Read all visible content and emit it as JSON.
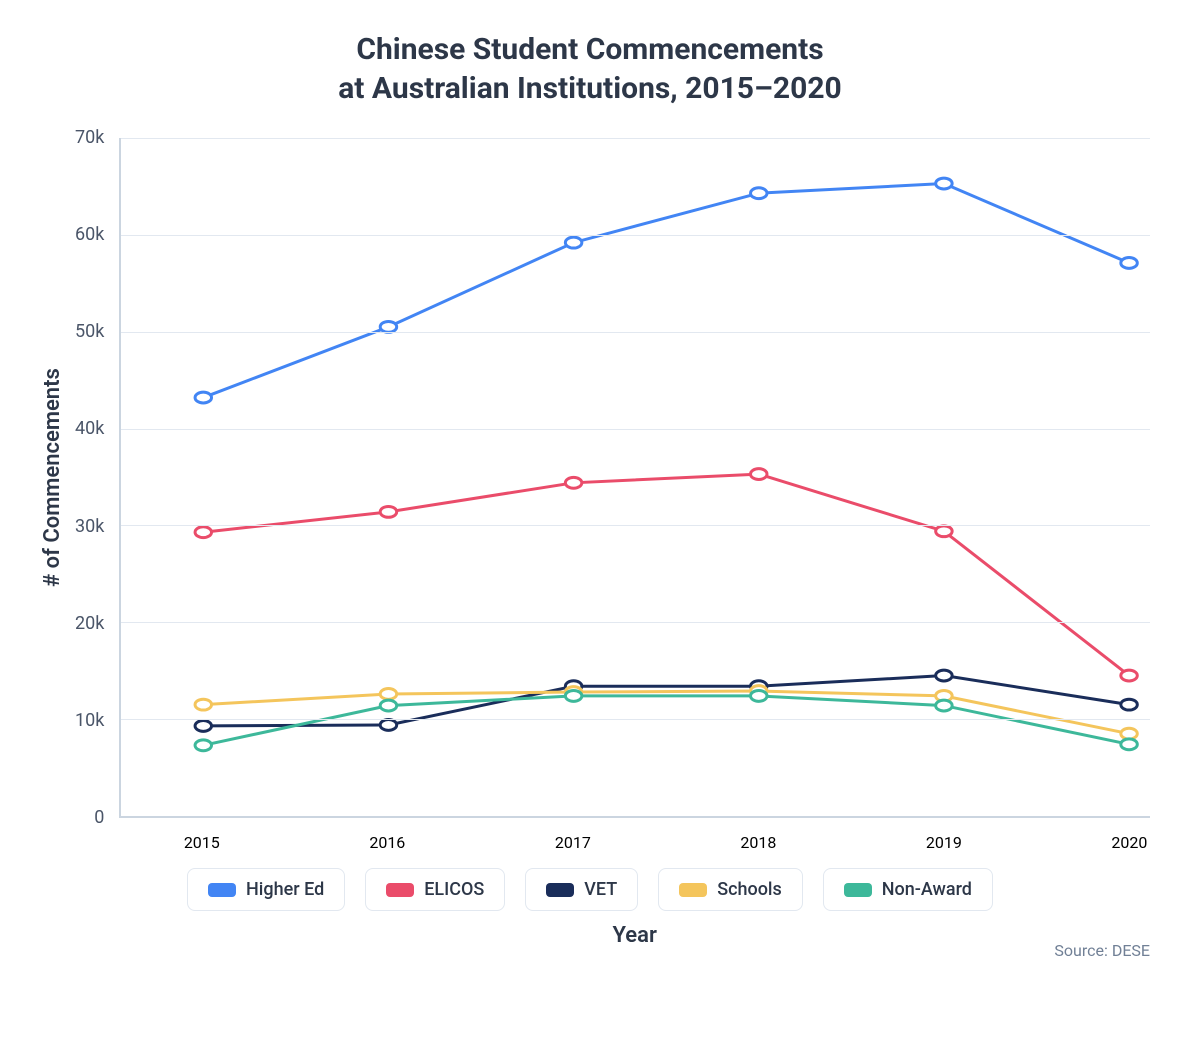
{
  "chart": {
    "type": "line",
    "title_line1": "Chinese Student Commencements",
    "title_line2": "at Australian Institutions, 2015–2020",
    "title_fontsize": 30,
    "title_color": "#2d3748",
    "y_axis_label": "# of Commencements",
    "x_axis_label": "Year",
    "axis_label_fontsize": 22,
    "tick_fontsize": 18,
    "tick_color": "#4a5568",
    "background_color": "#ffffff",
    "grid_color": "#e2e8f0",
    "axis_color": "#cbd5e0",
    "x_categories": [
      "2015",
      "2016",
      "2017",
      "2018",
      "2019",
      "2020"
    ],
    "x_positions_pct": [
      8,
      26,
      44,
      62,
      80,
      98
    ],
    "y_ticks": [
      "0",
      "10k",
      "20k",
      "30k",
      "40k",
      "50k",
      "60k",
      "70k"
    ],
    "y_tick_values": [
      0,
      10000,
      20000,
      30000,
      40000,
      50000,
      60000,
      70000
    ],
    "ylim": [
      0,
      70000
    ],
    "line_width": 3,
    "marker_radius": 6,
    "marker_fill": "#ffffff",
    "marker_stroke_width": 3,
    "series": [
      {
        "name": "Higher Ed",
        "color": "#4285f4",
        "values": [
          43200,
          50500,
          59200,
          64300,
          65300,
          57100
        ]
      },
      {
        "name": "ELICOS",
        "color": "#ea4c6a",
        "values": [
          29300,
          31400,
          34400,
          35300,
          29400,
          14500
        ]
      },
      {
        "name": "VET",
        "color": "#1a2d5a",
        "values": [
          9300,
          9400,
          13400,
          13400,
          14500,
          11500
        ]
      },
      {
        "name": "Schools",
        "color": "#f4c55c",
        "values": [
          11500,
          12600,
          12800,
          12900,
          12400,
          8500
        ]
      },
      {
        "name": "Non-Award",
        "color": "#3db89a",
        "values": [
          7300,
          11400,
          12400,
          12400,
          11400,
          7400
        ]
      }
    ],
    "legend_border_color": "#e2e8f0",
    "source_label": "Source: DESE",
    "source_color": "#718096"
  }
}
